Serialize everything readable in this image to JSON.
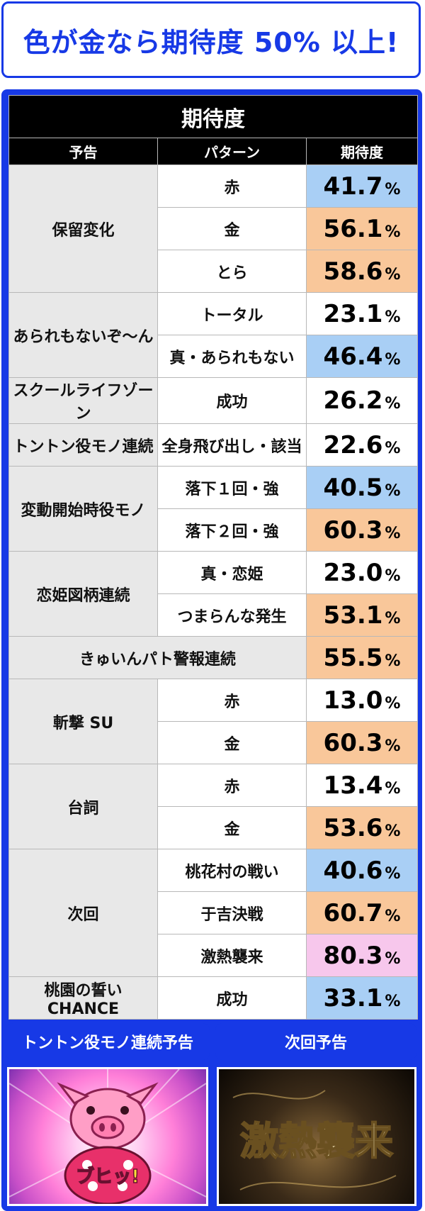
{
  "header": {
    "text": "色が金なら期待度 50% 以上!"
  },
  "table": {
    "title": "期待度",
    "columns": [
      "予告",
      "パターン",
      "期待度"
    ],
    "pct_symbol": "%",
    "groups": [
      {
        "category": "保留変化",
        "rows": [
          {
            "pattern": "赤",
            "value": "41.7",
            "color": "#a9cff5"
          },
          {
            "pattern": "金",
            "value": "56.1",
            "color": "#f9c79a"
          },
          {
            "pattern": "とら",
            "value": "58.6",
            "color": "#f9c79a"
          }
        ]
      },
      {
        "category": "あられもないぞ〜ん",
        "rows": [
          {
            "pattern": "トータル",
            "value": "23.1",
            "color": "#ffffff"
          },
          {
            "pattern": "真・あられもない",
            "value": "46.4",
            "color": "#a9cff5"
          }
        ]
      },
      {
        "category": "スクールライフゾーン",
        "rows": [
          {
            "pattern": "成功",
            "value": "26.2",
            "color": "#ffffff"
          }
        ]
      },
      {
        "category": "トントン役モノ連続",
        "rows": [
          {
            "pattern": "全身飛び出し・該当",
            "value": "22.6",
            "color": "#ffffff"
          }
        ]
      },
      {
        "category": "変動開始時役モノ",
        "rows": [
          {
            "pattern": "落下１回・強",
            "value": "40.5",
            "color": "#a9cff5"
          },
          {
            "pattern": "落下２回・強",
            "value": "60.3",
            "color": "#f9c79a"
          }
        ]
      },
      {
        "category": "恋姫図柄連続",
        "rows": [
          {
            "pattern": "真・恋姫",
            "value": "23.0",
            "color": "#ffffff"
          },
          {
            "pattern": "つまらんな発生",
            "value": "53.1",
            "color": "#f9c79a"
          }
        ]
      },
      {
        "category": "きゅいんパト警報連続",
        "merged": true,
        "rows": [
          {
            "pattern": "",
            "value": "55.5",
            "color": "#f9c79a"
          }
        ]
      },
      {
        "category": "斬撃 SU",
        "rows": [
          {
            "pattern": "赤",
            "value": "13.0",
            "color": "#ffffff"
          },
          {
            "pattern": "金",
            "value": "60.3",
            "color": "#f9c79a"
          }
        ]
      },
      {
        "category": "台詞",
        "rows": [
          {
            "pattern": "赤",
            "value": "13.4",
            "color": "#ffffff"
          },
          {
            "pattern": "金",
            "value": "53.6",
            "color": "#f9c79a"
          }
        ]
      },
      {
        "category": "次回",
        "rows": [
          {
            "pattern": "桃花村の戦い",
            "value": "40.6",
            "color": "#a9cff5"
          },
          {
            "pattern": "于吉決戦",
            "value": "60.7",
            "color": "#f9c79a"
          },
          {
            "pattern": "激熱襲来",
            "value": "80.3",
            "color": "#f7c7ec"
          }
        ]
      },
      {
        "category": "桃園の誓い CHANCE",
        "rows": [
          {
            "pattern": "成功",
            "value": "33.1",
            "color": "#a9cff5"
          }
        ]
      }
    ]
  },
  "buttons": {
    "left": "トントン役モノ連続予告",
    "right": "次回予告"
  },
  "screenshots": {
    "left": {
      "caption": "ブヒッ!"
    },
    "right": {
      "caption": "激熱襲来"
    }
  }
}
